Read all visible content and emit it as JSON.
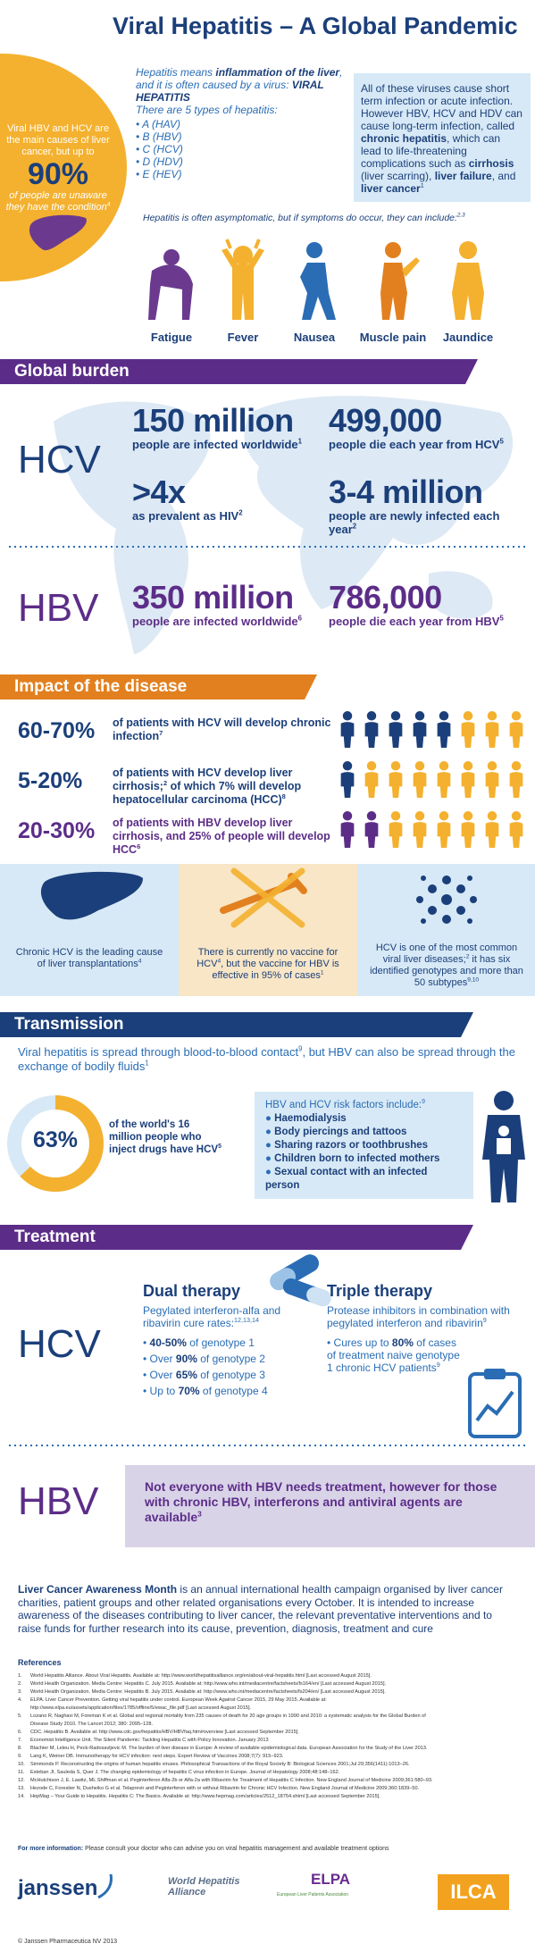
{
  "header": {
    "title": "Viral Hepatitis – A Global Pandemic",
    "side_note": {
      "lead": "Viral HBV and HCV are the main causes of liver cancer, but up to",
      "stat": "90%",
      "tail": [
        "of people are unaware they have the condition",
        {
          "sup": "4"
        }
      ]
    },
    "intro": [
      "Hepatitis means ",
      {
        "b": "inflammation of the liver"
      },
      ", and it is often caused by a virus: ",
      {
        "b": "VIRAL HEPATITIS"
      }
    ],
    "types_intro": "There are 5 types of hepatitis:",
    "types": [
      "A (HAV)",
      "B (HBV)",
      "C (HCV)",
      "D (HDV)",
      "E (HEV)"
    ],
    "chronic_box": [
      "All of these viruses cause short term infection or acute infection. However HBV, HCV and HDV can cause long-term infection, called ",
      {
        "b": "chronic hepatitis"
      },
      ", which can lead to life-threatening complications such as ",
      {
        "b": "cirrhosis"
      },
      " (liver scarring), ",
      {
        "b": "liver failure"
      },
      ", and ",
      {
        "b": "liver cancer"
      },
      {
        "sup": "1"
      }
    ],
    "symptoms_intro": [
      "Hepatitis is often asymptomatic, but if symptoms do occur, they can include:",
      {
        "sup": "2,3"
      }
    ],
    "symptoms": [
      "Fatigue",
      "Fever",
      "Nausea",
      "Muscle pain",
      "Jaundice"
    ]
  },
  "global_burden": {
    "heading": "Global burden",
    "hcv": {
      "label": "HCV",
      "stats": [
        {
          "value": "150 million",
          "text": [
            "people are infected worldwide",
            {
              "sup": "1"
            }
          ]
        },
        {
          "value": "499,000",
          "text": [
            "people die each year from HCV",
            {
              "sup": "5"
            }
          ]
        },
        {
          "value": ">4x",
          "text": [
            "as prevalent as HIV",
            {
              "sup": "2"
            }
          ]
        },
        {
          "value": "3-4 million",
          "text": [
            "people are newly infected each year",
            {
              "sup": "2"
            }
          ]
        }
      ]
    },
    "hbv": {
      "label": "HBV",
      "stats": [
        {
          "value": "350 million",
          "text": [
            "people are infected worldwide",
            {
              "sup": "6"
            }
          ]
        },
        {
          "value": "786,000",
          "text": [
            "people die each year from HBV",
            {
              "sup": "5"
            }
          ]
        }
      ]
    }
  },
  "impact": {
    "heading": "Impact of the disease",
    "rows": [
      {
        "stat": "60-70%",
        "text": [
          "of patients with HCV will develop chronic infection",
          {
            "sup": "7"
          }
        ]
      },
      {
        "stat": "5-20%",
        "text": [
          "of patients with HCV develop liver cirrhosis;",
          {
            "sup": "2"
          },
          " of which 7% will develop hepatocellular carcinoma (HCC)",
          {
            "sup": "8"
          }
        ]
      },
      {
        "stat": "20-30%",
        "text": [
          "of patients with HBV develop liver cirrhosis, and 25% of people will develop HCC",
          {
            "sup": "6"
          }
        ]
      }
    ],
    "facts": [
      [
        "Chronic HCV is the leading cause of liver transplantations",
        {
          "sup": "4"
        }
      ],
      [
        "There is currently no vaccine for HCV",
        {
          "sup": "4"
        },
        ", but the vaccine for HBV is effective in 95% of cases",
        {
          "sup": "1"
        }
      ],
      [
        "HCV is one of the most common viral liver diseases;",
        {
          "sup": "2"
        },
        " it has six identified genotypes and more than 50 subtypes",
        {
          "sup": "9,10"
        }
      ]
    ]
  },
  "transmission": {
    "heading": "Transmission",
    "intro": [
      "Viral hepatitis is spread through blood-to-blood contact",
      {
        "sup": "9"
      },
      ", but HBV can also be spread through the exchange of bodily fluids",
      {
        "sup": "1"
      }
    ],
    "donut": {
      "value": 63,
      "label": "63%"
    },
    "donut_text": [
      "of the world's 16 million people who inject drugs have HCV",
      {
        "sup": "5"
      }
    ],
    "risk_intro": [
      "HBV and HCV risk factors include:",
      {
        "sup": "9"
      }
    ],
    "risks": [
      "Haemodialysis",
      "Body piercings and tattoos",
      "Sharing razors or toothbrushes",
      "Children born to infected mothers",
      "Sexual contact with an infected person"
    ]
  },
  "treatment": {
    "heading": "Treatment",
    "hcv_label": "HCV",
    "dual": {
      "title": "Dual therapy",
      "intro": [
        "Pegylated interferon-alfa and ribavirin cure rates:",
        {
          "sup": "12,13,14"
        }
      ],
      "items": [
        [
          {
            "b": "40-50%"
          },
          " of genotype 1"
        ],
        [
          "Over ",
          {
            "b": "90%"
          },
          " of genotype 2"
        ],
        [
          "Over ",
          {
            "b": "65%"
          },
          " of genotype 3"
        ],
        [
          "Up to ",
          {
            "b": "70%"
          },
          " of genotype 4"
        ]
      ]
    },
    "triple": {
      "title": "Triple therapy",
      "intro": [
        "Protease inhibitors in combination with pegylated interferon and ribavirin",
        {
          "sup": "9"
        }
      ],
      "items": [
        [
          "Cures up to ",
          {
            "b": "80%"
          },
          " of cases of treatment naive genotype 1 chronic HCV patients",
          {
            "sup": "9"
          }
        ]
      ]
    },
    "hbv_label": "HBV",
    "hbv_text": [
      "Not everyone with HBV needs treatment, however for those with chronic HBV, interferons and antiviral agents are available",
      {
        "sup": "3"
      }
    ]
  },
  "awareness": [
    {
      "b": "Liver Cancer Awareness Month"
    },
    " is an annual international health campaign organised by liver cancer charities, patient groups and other related organisations every October. It is intended to increase awareness of the diseases contributing to liver cancer, the relevant preventative interventions and to raise funds for further research into its cause, prevention, diagnosis, treatment and cure"
  ],
  "references": {
    "heading": "References",
    "items": [
      {
        "n": "1.",
        "text": "World Hepatitis Alliance. About Viral Hepatitis. Available at: http://www.worldhepatitisalliance.org/en/about-viral-hepatitis.html [Last accessed August 2015]."
      },
      {
        "n": "2.",
        "text": "World Health Organization. Media Centre: Hepatitis C. July 2015. Available at: http://www.who.int/mediacentre/factsheets/fs164/en/ [Last accessed August 2015]."
      },
      {
        "n": "3.",
        "text": "World Health Organization. Media Centre: Hepatitis B. July 2015. Available at: http://www.who.int/mediacentre/factsheets/fs204/en/ [Last accessed August 2015]."
      },
      {
        "n": "4.",
        "text": "ELPA. Liver Cancer Prevention. Getting viral hepatitis under control. European Week Against Cancer 2015, 29 May 2015. Available at: http://www.elpa.eu/assets/application/files/1785/offline/5/ewac_file.pdf [Last accessed August 2015]."
      },
      {
        "n": "5.",
        "text": "Lozano R, Naghavi M, Foreman K et al. Global and regional mortality from 235 causes of death for 20 age groups in 1990 and 2010: a systematic analysis for the Global Burden of Disease Study 2010. The Lancet 2012; 380: 2095–128."
      },
      {
        "n": "6.",
        "text": "CDC. Hepatitis B. Available at: http://www.cdc.gov/hepatitis/HBV/HBVfaq.htm#overview [Last accessed September 2015]."
      },
      {
        "n": "7.",
        "text": "Economist Intelligence Unit. The Silent Pandemic: Tackling Hepatitis C with Policy Innovation. January 2013"
      },
      {
        "n": "8.",
        "text": "Blachier M, Leleu H, Peck-Radosavljevic M. The burden of liver disease in Europe: A review of available epidemiological data. European Association for the Study of the Liver 2013."
      },
      {
        "n": "9.",
        "text": "Lang K, Weiner DB. Immunotherapy for HCV infection: next steps. Expert Review of Vaccines 2008;7(7): 915–923."
      },
      {
        "n": "10.",
        "text": "Simmonds P. Reconstructing the origins of human hepatitis viruses. Philosophical Transactions of the Royal Society B: Biological Sciences 2001;Jul 29;356(1411):1013–26."
      },
      {
        "n": "11.",
        "text": "Esteban JI, Sauleda S, Quer J. The changing epidemiology of hepatitis C virus infection in Europe. Journal of Hepatology 2008;48:148–162."
      },
      {
        "n": "12.",
        "text": "McHutchison J, E. Lawitz, ML Shiffman et al. Peginterferon Alfa-2b or Alfa-2a with Ribavirin for Treatment of Hepatitis C Infection. New England Journal of Medicine 2009;361:580–93."
      },
      {
        "n": "13.",
        "text": "Hezode C, Forestier N, Dusheiko G et al. Telaprevir and Peginterferon with or without Ribavirin for Chronic HCV Infection. New England Journal of Medicine 2009;360:1839–50."
      },
      {
        "n": "14.",
        "text": "HepMag – Your Guide to Hepatitis. Hepatitis C: The Basics. Available at: http://www.hepmag.com/articles/2512_18754.shtml [Last accessed September 2015]."
      }
    ]
  },
  "more_info": [
    {
      "b": "For more information:"
    },
    " Please consult your doctor who can advise you on viral hepatitis management and available treatment options"
  ],
  "logos": {
    "janssen": "janssen",
    "wha": "World Hepatitis Alliance",
    "elpa": "ELPA",
    "elpa_sub": "European Liver Patients Association",
    "ilca": "ILCA"
  },
  "copyright": "© Janssen Pharmaceutica NV 2013"
}
